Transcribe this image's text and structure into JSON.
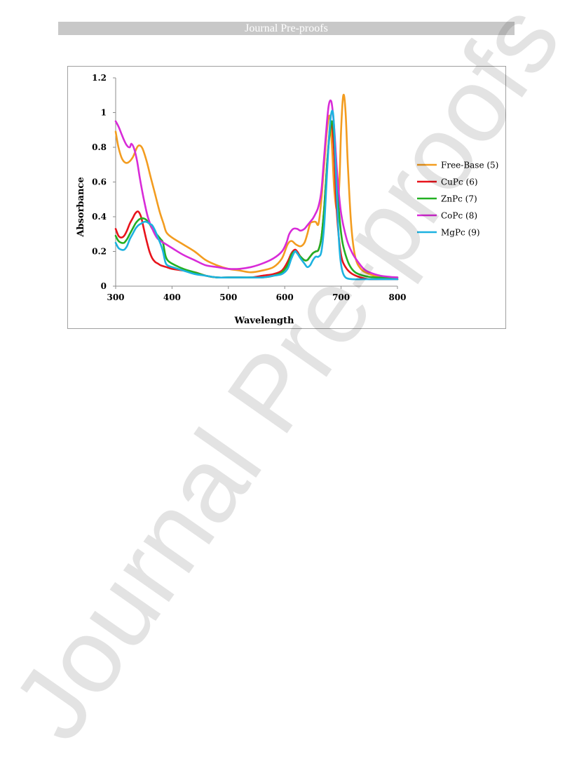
{
  "header": {
    "title": "Journal Pre-proofs"
  },
  "watermark": {
    "text": "Journal Pre-proofs"
  },
  "chart_data": {
    "type": "line",
    "xlabel": "Wavelength",
    "ylabel": "Absorbance",
    "xlim": [
      300,
      800
    ],
    "ylim": [
      0,
      1.2
    ],
    "xticks": [
      300,
      400,
      500,
      600,
      700,
      800
    ],
    "yticks": [
      0,
      0.2,
      0.4,
      0.6,
      0.8,
      1,
      1.2
    ],
    "ytick_labels": [
      "0",
      "0.2",
      "0.4",
      "0.6",
      "0.8",
      "1",
      "1.2"
    ],
    "grid": false,
    "legend_position": "right",
    "series": [
      {
        "name": "Free-Base (5)",
        "color": "#f39c1f",
        "x": [
          300,
          305,
          312,
          320,
          330,
          338,
          343,
          348,
          355,
          362,
          370,
          378,
          385,
          390,
          400,
          420,
          440,
          460,
          480,
          500,
          520,
          540,
          560,
          580,
          595,
          605,
          612,
          620,
          628,
          635,
          640,
          645,
          650,
          655,
          660,
          665,
          670,
          675,
          680,
          684,
          688,
          693,
          697,
          700,
          704,
          708,
          712,
          718,
          725,
          735,
          750,
          770,
          800
        ],
        "y": [
          0.89,
          0.8,
          0.73,
          0.71,
          0.74,
          0.8,
          0.81,
          0.79,
          0.72,
          0.63,
          0.53,
          0.43,
          0.36,
          0.31,
          0.28,
          0.24,
          0.2,
          0.15,
          0.12,
          0.1,
          0.09,
          0.08,
          0.09,
          0.11,
          0.16,
          0.24,
          0.26,
          0.24,
          0.23,
          0.25,
          0.3,
          0.36,
          0.37,
          0.37,
          0.36,
          0.5,
          0.7,
          0.9,
          0.98,
          0.8,
          0.55,
          0.44,
          0.6,
          0.9,
          1.1,
          1.0,
          0.7,
          0.35,
          0.17,
          0.1,
          0.07,
          0.05,
          0.04
        ]
      },
      {
        "name": "CuPc (6)",
        "color": "#e8131b",
        "x": [
          300,
          305,
          310,
          315,
          320,
          325,
          330,
          335,
          340,
          345,
          350,
          355,
          360,
          365,
          370,
          375,
          380,
          390,
          400,
          420,
          440,
          460,
          480,
          500,
          520,
          540,
          560,
          580,
          595,
          605,
          612,
          618,
          622,
          628,
          635,
          640,
          645,
          650,
          655,
          660,
          665,
          670,
          675,
          680,
          684,
          688,
          692,
          697,
          702,
          710,
          720,
          735,
          750,
          770,
          800
        ],
        "y": [
          0.33,
          0.29,
          0.28,
          0.29,
          0.32,
          0.36,
          0.39,
          0.42,
          0.43,
          0.4,
          0.33,
          0.26,
          0.2,
          0.16,
          0.14,
          0.13,
          0.12,
          0.11,
          0.1,
          0.09,
          0.08,
          0.06,
          0.05,
          0.05,
          0.05,
          0.05,
          0.06,
          0.07,
          0.09,
          0.14,
          0.19,
          0.21,
          0.2,
          0.17,
          0.15,
          0.15,
          0.17,
          0.19,
          0.2,
          0.21,
          0.28,
          0.45,
          0.7,
          0.9,
          0.93,
          0.75,
          0.45,
          0.25,
          0.15,
          0.1,
          0.07,
          0.05,
          0.04,
          0.04,
          0.04
        ]
      },
      {
        "name": "ZnPc (7)",
        "color": "#23b023",
        "x": [
          300,
          305,
          310,
          315,
          320,
          325,
          330,
          335,
          340,
          345,
          350,
          355,
          360,
          365,
          370,
          375,
          380,
          384,
          388,
          392,
          400,
          420,
          440,
          460,
          480,
          500,
          520,
          540,
          560,
          580,
          595,
          605,
          612,
          618,
          622,
          628,
          635,
          640,
          645,
          650,
          655,
          660,
          665,
          670,
          675,
          680,
          684,
          688,
          692,
          697,
          702,
          708,
          715,
          725,
          740,
          760,
          780,
          800
        ],
        "y": [
          0.29,
          0.26,
          0.25,
          0.25,
          0.27,
          0.3,
          0.33,
          0.36,
          0.38,
          0.39,
          0.39,
          0.38,
          0.36,
          0.33,
          0.31,
          0.29,
          0.27,
          0.25,
          0.18,
          0.15,
          0.13,
          0.1,
          0.08,
          0.06,
          0.05,
          0.05,
          0.05,
          0.05,
          0.05,
          0.06,
          0.08,
          0.12,
          0.18,
          0.2,
          0.19,
          0.17,
          0.15,
          0.15,
          0.17,
          0.19,
          0.2,
          0.21,
          0.28,
          0.45,
          0.7,
          0.88,
          0.95,
          0.85,
          0.62,
          0.4,
          0.26,
          0.18,
          0.12,
          0.08,
          0.06,
          0.05,
          0.05,
          0.05
        ]
      },
      {
        "name": "CoPc (8)",
        "color": "#d82bd8",
        "x": [
          300,
          305,
          310,
          315,
          320,
          325,
          328,
          333,
          338,
          343,
          350,
          357,
          365,
          373,
          380,
          390,
          400,
          420,
          440,
          460,
          480,
          500,
          520,
          540,
          560,
          580,
          595,
          603,
          608,
          615,
          622,
          628,
          635,
          640,
          645,
          650,
          655,
          660,
          665,
          670,
          675,
          678,
          681,
          684,
          688,
          693,
          700,
          710,
          720,
          730,
          740,
          750,
          770,
          800
        ],
        "y": [
          0.95,
          0.92,
          0.88,
          0.84,
          0.81,
          0.8,
          0.82,
          0.79,
          0.72,
          0.62,
          0.5,
          0.4,
          0.33,
          0.28,
          0.26,
          0.24,
          0.22,
          0.18,
          0.15,
          0.12,
          0.11,
          0.1,
          0.1,
          0.11,
          0.13,
          0.16,
          0.2,
          0.25,
          0.3,
          0.33,
          0.33,
          0.32,
          0.33,
          0.35,
          0.37,
          0.39,
          0.42,
          0.46,
          0.55,
          0.75,
          0.95,
          1.04,
          1.07,
          1.04,
          0.9,
          0.65,
          0.42,
          0.27,
          0.19,
          0.14,
          0.1,
          0.08,
          0.06,
          0.05
        ]
      },
      {
        "name": "MgPc (9)",
        "color": "#1cb2e0",
        "x": [
          300,
          305,
          310,
          315,
          320,
          325,
          330,
          335,
          340,
          345,
          350,
          355,
          360,
          365,
          370,
          375,
          380,
          384,
          388,
          392,
          400,
          420,
          440,
          460,
          480,
          500,
          520,
          540,
          560,
          580,
          595,
          605,
          612,
          618,
          622,
          628,
          635,
          640,
          645,
          650,
          655,
          660,
          665,
          670,
          675,
          680,
          684,
          687,
          690,
          694,
          698,
          702,
          708,
          720,
          740,
          770,
          800
        ],
        "y": [
          0.25,
          0.22,
          0.21,
          0.21,
          0.23,
          0.27,
          0.3,
          0.33,
          0.35,
          0.36,
          0.37,
          0.37,
          0.36,
          0.35,
          0.32,
          0.28,
          0.24,
          0.2,
          0.14,
          0.12,
          0.11,
          0.09,
          0.07,
          0.06,
          0.05,
          0.05,
          0.05,
          0.05,
          0.05,
          0.06,
          0.07,
          0.1,
          0.16,
          0.2,
          0.19,
          0.16,
          0.13,
          0.11,
          0.12,
          0.15,
          0.17,
          0.17,
          0.2,
          0.35,
          0.65,
          0.92,
          1.01,
          0.95,
          0.72,
          0.4,
          0.18,
          0.09,
          0.05,
          0.04,
          0.04,
          0.04,
          0.04
        ]
      }
    ]
  }
}
